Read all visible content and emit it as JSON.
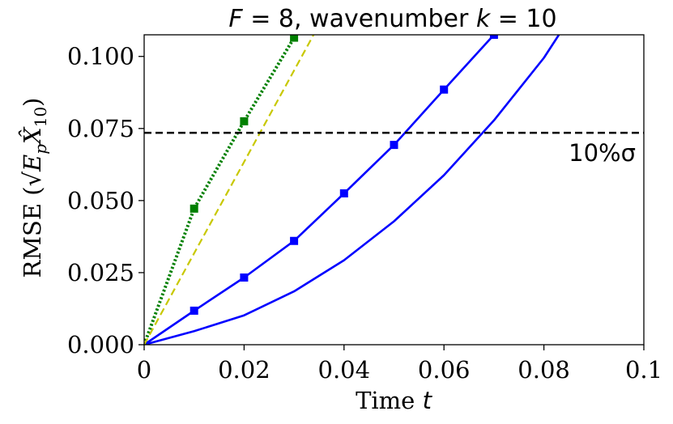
{
  "chart_data": {
    "type": "line",
    "title": "F = 8, wavenumber k = 10",
    "title_parts": {
      "f_symbol": "F",
      "eq1": " = 8, wavenumber ",
      "k_symbol": "k",
      "eq2": " = 10"
    },
    "xlabel": "Time t",
    "xlabel_parts": {
      "text": "Time ",
      "symbol": "t"
    },
    "ylabel": "RMSE (√(E_p) X̂_10)",
    "ylabel_parts": {
      "text": "RMSE (",
      "sqrt": "√",
      "e": "E",
      "p": "p",
      "x": "X̂",
      "sub": "10",
      "close": ")"
    },
    "xlim": [
      0,
      0.1
    ],
    "ylim": [
      0,
      0.1075
    ],
    "x_ticks": [
      0,
      0.02,
      0.04,
      0.06,
      0.08,
      0.1
    ],
    "x_tick_labels": [
      "0",
      "0.02",
      "0.04",
      "0.06",
      "0.08",
      "0.1"
    ],
    "y_ticks": [
      0,
      0.025,
      0.05,
      0.075,
      0.1
    ],
    "y_tick_labels": [
      "0.000",
      "0.025",
      "0.050",
      "0.075",
      "0.100"
    ],
    "grid": false,
    "legend": "none",
    "threshold": {
      "value": 0.0735,
      "label": "10%σ",
      "color": "#000000",
      "style": "dashed"
    },
    "series": [
      {
        "name": "blue-square",
        "color": "#0000ff",
        "style": "solid",
        "marker": "square",
        "x": [
          0,
          0.01,
          0.02,
          0.03,
          0.04,
          0.05,
          0.06,
          0.07
        ],
        "y": [
          0,
          0.0118,
          0.0233,
          0.036,
          0.0525,
          0.0693,
          0.0885,
          0.1075
        ]
      },
      {
        "name": "blue-plain",
        "color": "#0000ff",
        "style": "solid",
        "marker": "none",
        "x": [
          0,
          0.01,
          0.02,
          0.03,
          0.04,
          0.05,
          0.06,
          0.07,
          0.08,
          0.083
        ],
        "y": [
          0,
          0.0047,
          0.0102,
          0.0185,
          0.0293,
          0.0428,
          0.0588,
          0.0778,
          0.0995,
          0.1075
        ]
      },
      {
        "name": "green-dotted",
        "color": "#008000",
        "style": "dotted",
        "marker": "square",
        "x": [
          0,
          0.01,
          0.02,
          0.03
        ],
        "y": [
          0,
          0.0472,
          0.0775,
          0.1065
        ]
      },
      {
        "name": "yellow-dashed",
        "color": "#c8c800",
        "style": "dashed",
        "marker": "none",
        "x": [
          0,
          0.0339
        ],
        "y": [
          0,
          0.1075
        ]
      }
    ]
  }
}
